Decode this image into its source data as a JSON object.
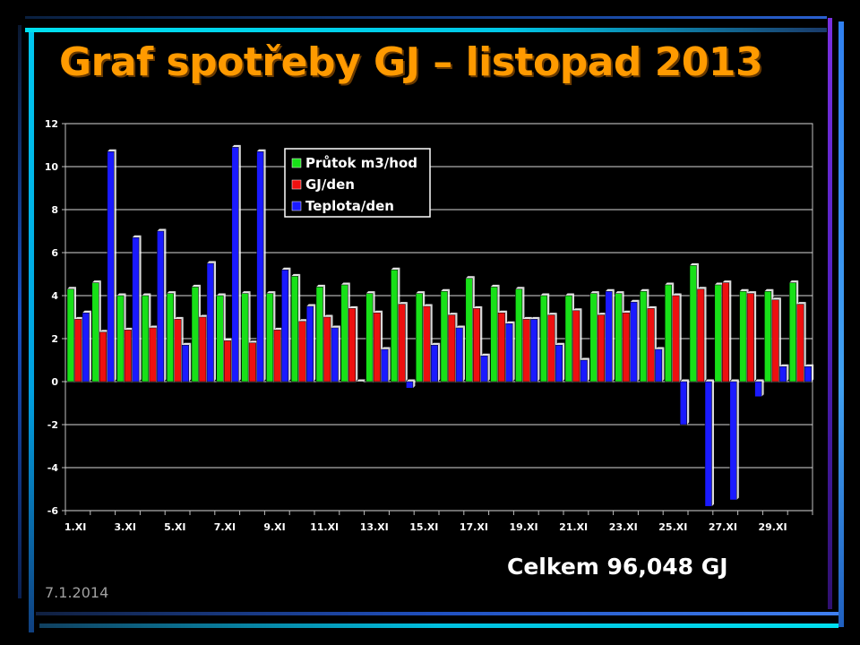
{
  "slide": {
    "title": "Graf spotřeby GJ – listopad 2013",
    "total": "Celkem 96,048 GJ",
    "date": "7.1.2014"
  },
  "colors": {
    "background": "#000000",
    "title": "#ff9a00",
    "prutok": "#18e018",
    "gj": "#ee1010",
    "teplota": "#1a1aff"
  },
  "chart_data": {
    "type": "bar",
    "categories": [
      "1.XI",
      "2.XI",
      "3.XI",
      "4.XI",
      "5.XI",
      "6.XI",
      "7.XI",
      "8.XI",
      "9.XI",
      "10.XI",
      "11.XI",
      "12.XI",
      "13.XI",
      "14.XI",
      "15.XI",
      "16.XI",
      "17.XI",
      "18.XI",
      "19.XI",
      "20.XI",
      "21.XI",
      "22.XI",
      "23.XI",
      "24.XI",
      "25.XI",
      "26.XI",
      "27.XI",
      "28.XI",
      "29.XI",
      "30.XI"
    ],
    "tick_labels": [
      "1.XI",
      "3.XI",
      "5.XI",
      "7.XI",
      "9.XI",
      "11.XI",
      "13.XI",
      "15.XI",
      "17.XI",
      "19.XI",
      "21.XI",
      "23.XI",
      "25.XI",
      "27.XI",
      "29.XI"
    ],
    "series": [
      {
        "name": "Průtok m3/hod",
        "color": "#18e018",
        "values": [
          4.3,
          4.6,
          4.0,
          4.0,
          4.1,
          4.4,
          4.0,
          4.1,
          4.1,
          4.9,
          4.4,
          4.5,
          4.1,
          5.2,
          4.1,
          4.2,
          4.8,
          4.4,
          4.3,
          4.0,
          4.0,
          4.1,
          4.1,
          4.2,
          4.5,
          5.4,
          4.5,
          4.2,
          4.2,
          4.6
        ]
      },
      {
        "name": "GJ/den",
        "color": "#ee1010",
        "values": [
          2.9,
          2.3,
          2.4,
          2.5,
          2.9,
          3.0,
          1.9,
          1.8,
          2.4,
          2.8,
          3.0,
          3.4,
          3.2,
          3.6,
          3.5,
          3.1,
          3.4,
          3.2,
          2.9,
          3.1,
          3.3,
          3.1,
          3.2,
          3.4,
          4.0,
          4.3,
          4.6,
          4.1,
          3.8,
          3.6
        ]
      },
      {
        "name": "Teplota/den",
        "color": "#1a1aff",
        "values": [
          3.2,
          10.7,
          6.7,
          7.0,
          1.7,
          5.5,
          10.9,
          10.7,
          5.2,
          3.5,
          2.5,
          0.0,
          1.5,
          -0.3,
          1.7,
          2.5,
          1.2,
          2.7,
          2.9,
          1.7,
          1.0,
          4.2,
          3.7,
          1.5,
          -2.0,
          -5.8,
          -5.5,
          -0.7,
          0.7,
          0.7
        ]
      }
    ],
    "ylim": [
      -6,
      12
    ],
    "yticks": [
      -6,
      -4,
      -2,
      0,
      2,
      4,
      6,
      8,
      10,
      12
    ],
    "grid": true,
    "legend": "top-center"
  }
}
